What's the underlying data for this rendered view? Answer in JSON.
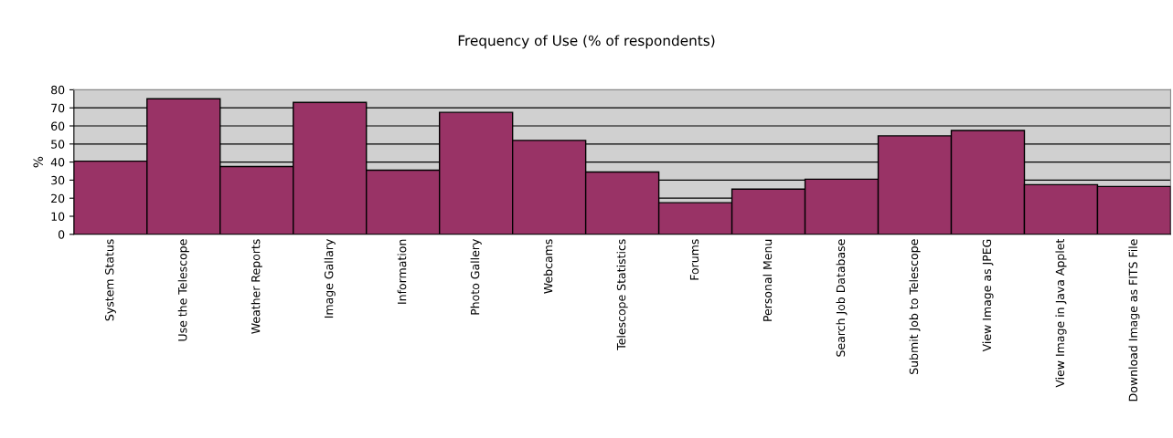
{
  "chart_data": {
    "type": "bar",
    "title": "Frequency of Use (% of respondents)",
    "ylabel": "%",
    "categories": [
      "System Status",
      "Use the Telescope",
      "Weather Reports",
      "Image Gallary",
      "Information",
      "Photo Gallery",
      "Webcams",
      "Telescope Statistics",
      "Forums",
      "Personal Menu",
      "Search Job Database",
      "Submit Job to Telescope",
      "View Image as JPEG",
      "View Image in Java Applet",
      "Download Image as FITS File"
    ],
    "values": [
      40.5,
      75,
      37.5,
      73,
      35.5,
      67.5,
      52,
      34.5,
      17.5,
      25,
      30.5,
      54.5,
      57.5,
      27.5,
      26.5
    ],
    "color": "#993366",
    "ylim": [
      0,
      80
    ],
    "yticks": [
      0,
      10,
      20,
      30,
      40,
      50,
      60,
      70,
      80
    ],
    "grid": "y",
    "legend": false
  }
}
